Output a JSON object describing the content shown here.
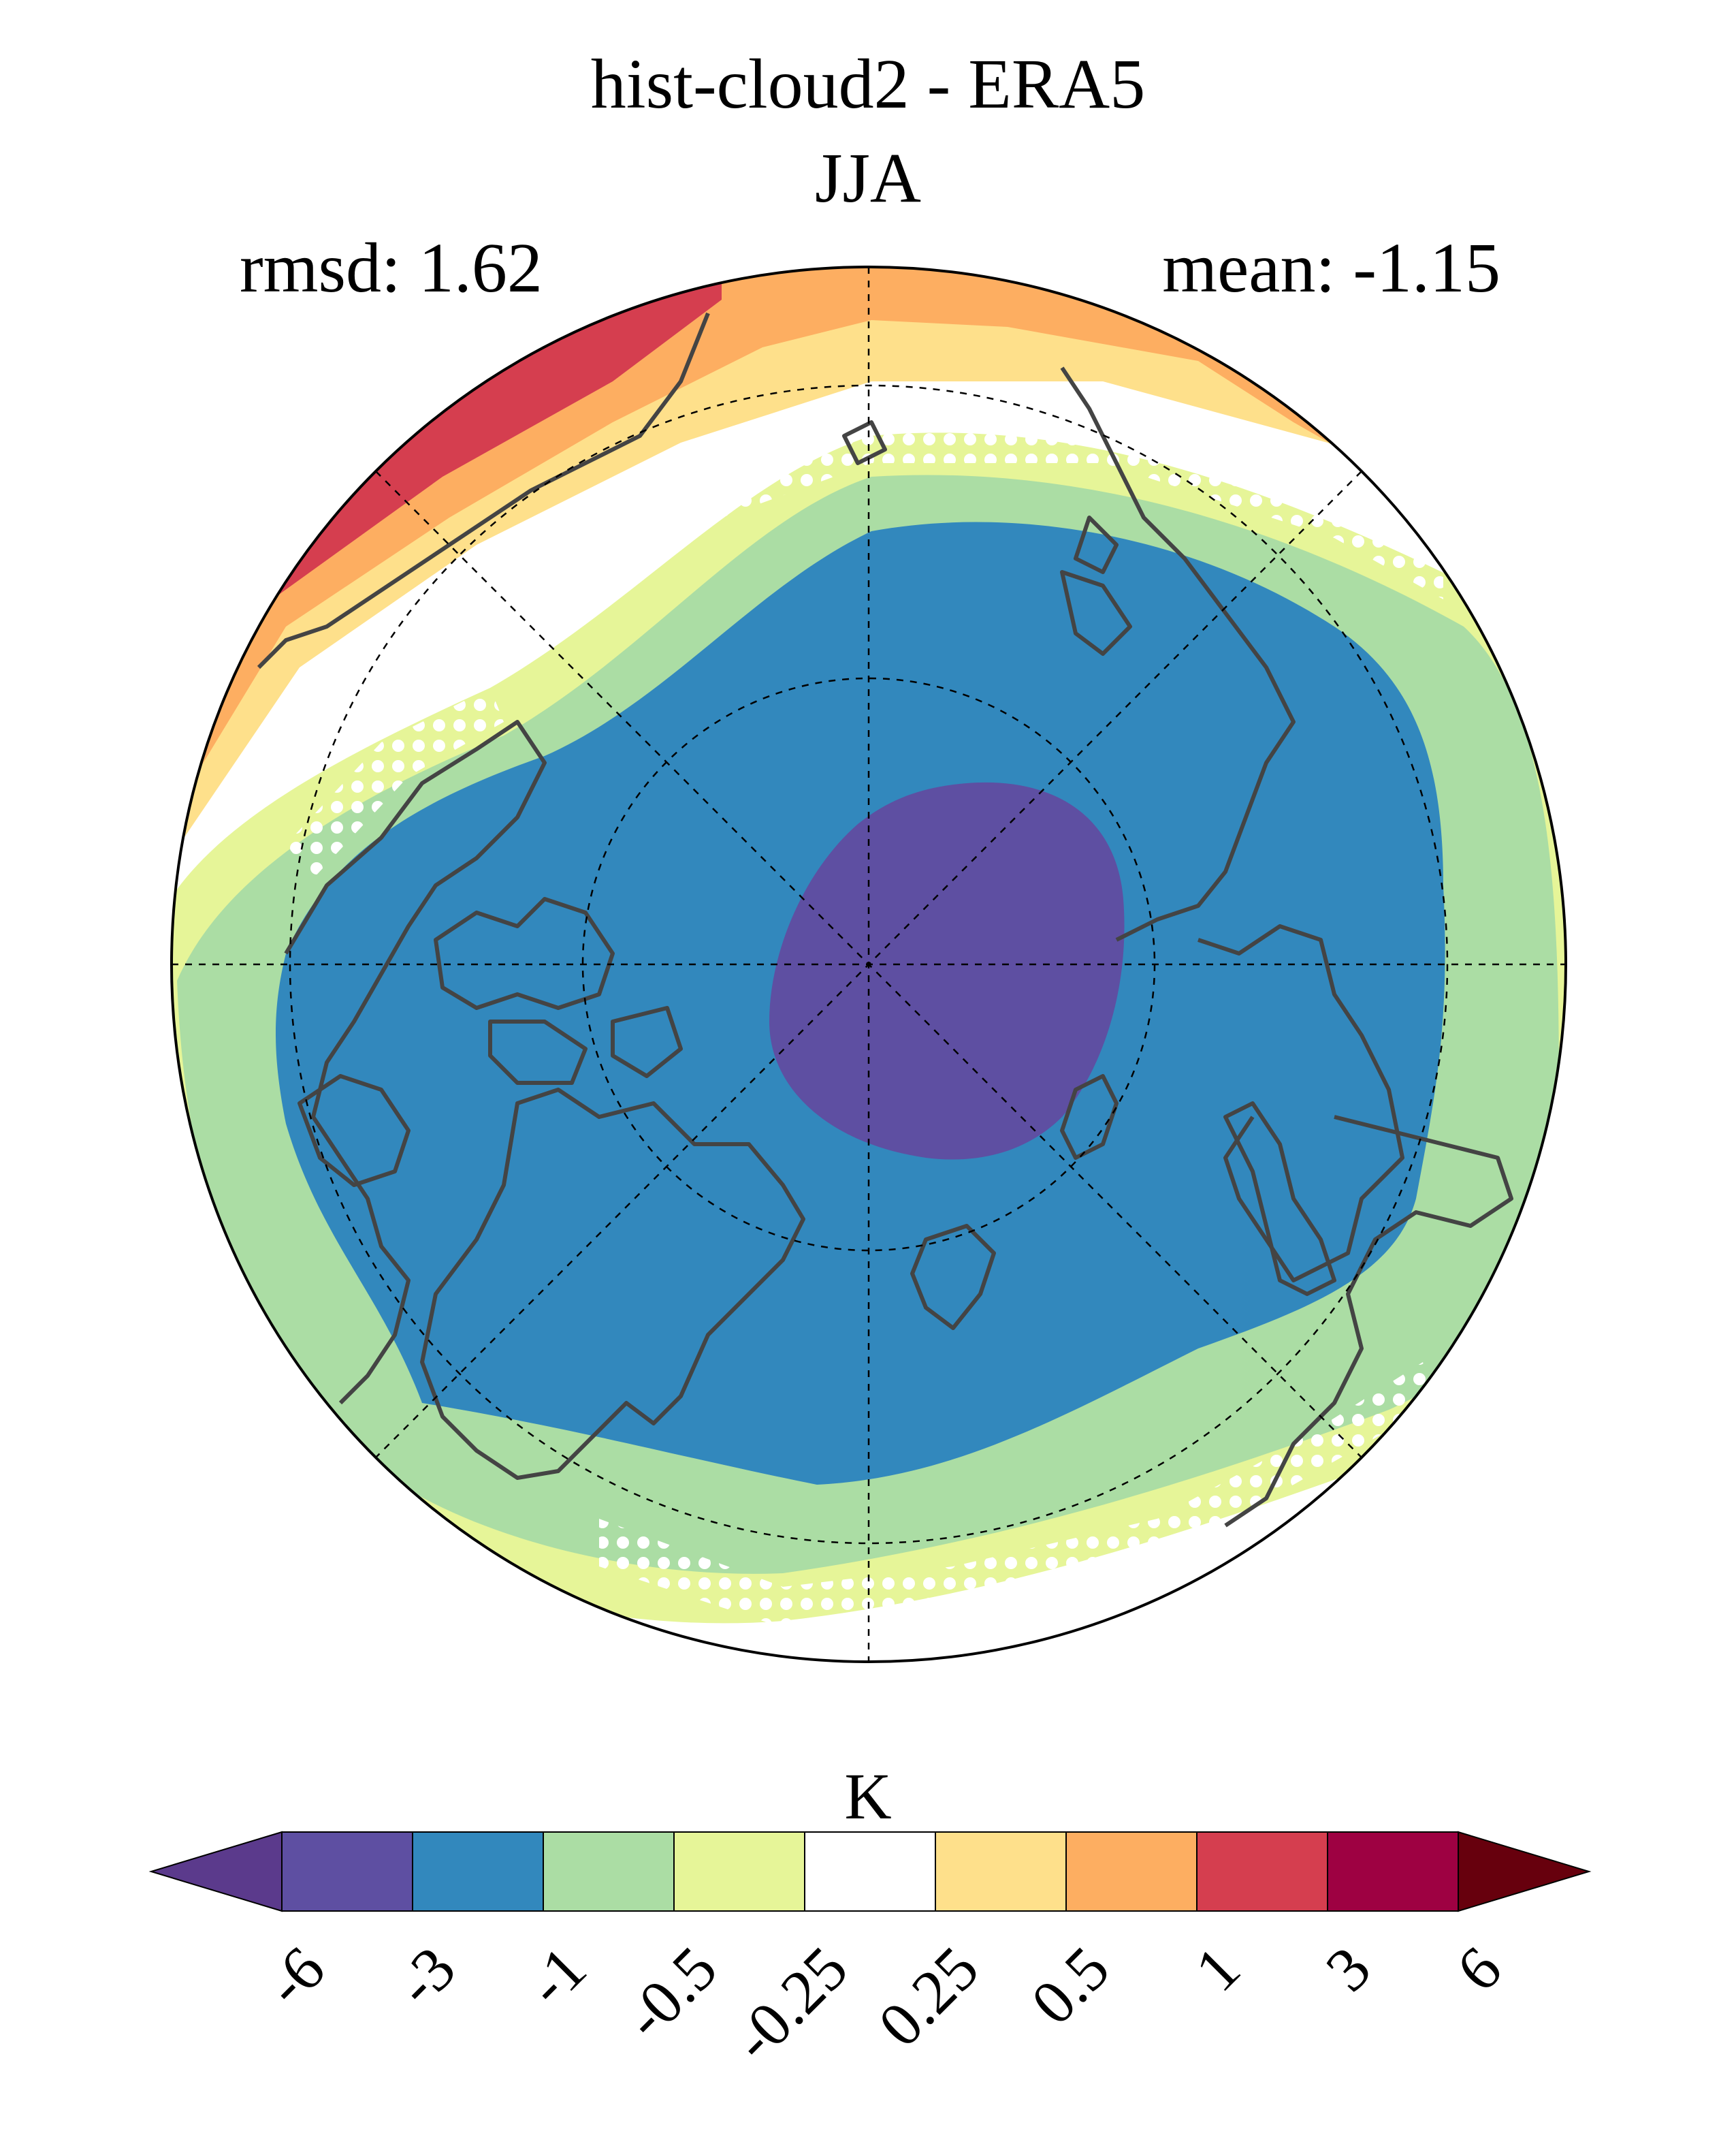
{
  "title": "hist-cloud2 - ERA5",
  "subtitle": "JJA",
  "rmsd_text": "rmsd: 1.62",
  "mean_text": "mean: -1.15",
  "projection": "north-polar-stereographic",
  "colorbar": {
    "unit": "K",
    "levels": [
      "-6",
      "-3",
      "-1",
      "-0.5",
      "-0.25",
      "0.25",
      "0.5",
      "1",
      "3",
      "6"
    ],
    "colors": [
      "#5e4fa2",
      "#3288bd",
      "#abdda4",
      "#e6f598",
      "#ffffff",
      "#fee08b",
      "#fdae61",
      "#d53e4f",
      "#9e0142"
    ],
    "under_color": "#5b3a8c",
    "over_color": "#67000d",
    "extend": "both"
  },
  "colors": {
    "coastline": "#444444",
    "gridline": "#000000",
    "stipple": "#ffffff"
  }
}
